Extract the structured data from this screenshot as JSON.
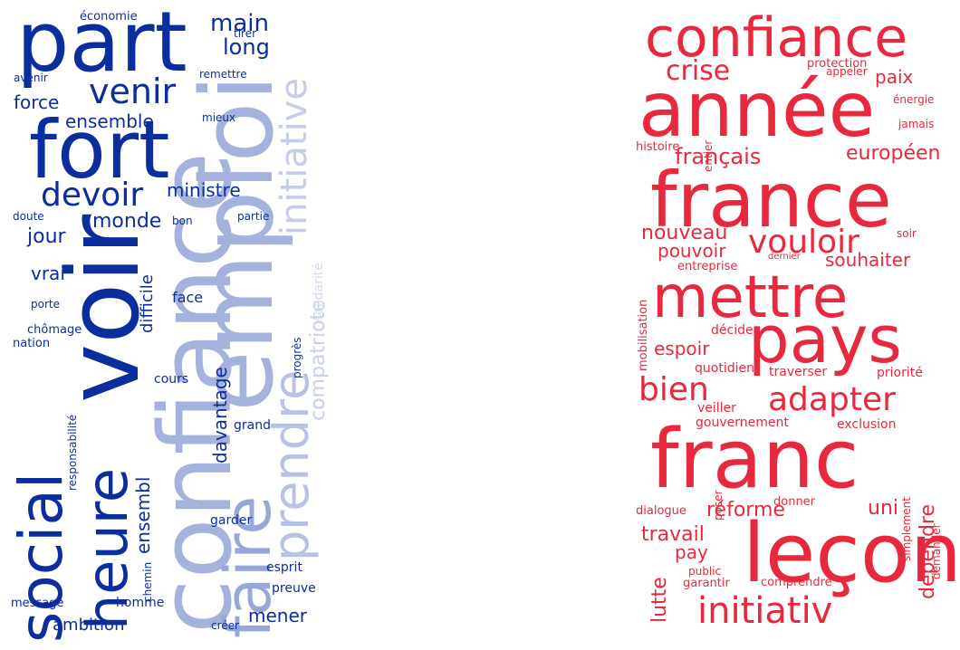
{
  "clouds": [
    {
      "name": "blue",
      "words": [
        {
          "text": "part",
          "color": "#0a2e9e"
        },
        {
          "text": "fort",
          "color": "#0a2e9e"
        },
        {
          "text": "heure",
          "color": "#0a2e9e"
        },
        {
          "text": "voir",
          "color": "#0a2e9e"
        },
        {
          "text": "social",
          "color": "#0a2e9e"
        },
        {
          "text": "confiance",
          "color": "#a6b2de"
        },
        {
          "text": "emploi",
          "color": "#a6b2de"
        },
        {
          "text": "faire",
          "color": "#98a6d9"
        },
        {
          "text": "initiative",
          "color": "#c5cde9"
        },
        {
          "text": "prendre",
          "color": "#b8c2e5"
        },
        {
          "text": "compatriote",
          "color": "#c9d0eb"
        },
        {
          "text": "solidarité",
          "color": "#d4daf0"
        },
        {
          "text": "venir",
          "color": "#0a2e9e"
        },
        {
          "text": "devoir",
          "color": "#0a2e9e"
        },
        {
          "text": "main",
          "color": "#0a2e9e"
        },
        {
          "text": "long",
          "color": "#0a2e9e"
        },
        {
          "text": "économie",
          "color": "#0a2e9e"
        },
        {
          "text": "tirer",
          "color": "#0a2e9e"
        },
        {
          "text": "remettre",
          "color": "#0a2e9e"
        },
        {
          "text": "avenir",
          "color": "#0a2e9e"
        },
        {
          "text": "force",
          "color": "#0a2e9e"
        },
        {
          "text": "ensemble",
          "color": "#0a2e9e"
        },
        {
          "text": "mieux",
          "color": "#0a2e9e"
        },
        {
          "text": "ministre",
          "color": "#0a2e9e"
        },
        {
          "text": "monde",
          "color": "#0a2e9e"
        },
        {
          "text": "doute",
          "color": "#0a2e9e"
        },
        {
          "text": "bon",
          "color": "#0a2e9e"
        },
        {
          "text": "partie",
          "color": "#0a2e9e"
        },
        {
          "text": "jour",
          "color": "#0a2e9e"
        },
        {
          "text": "vrai",
          "color": "#0a2e9e"
        },
        {
          "text": "difficile",
          "color": "#0a2e9e"
        },
        {
          "text": "face",
          "color": "#0a2e9e"
        },
        {
          "text": "porte",
          "color": "#0a2e9e"
        },
        {
          "text": "chômage",
          "color": "#0a2e9e"
        },
        {
          "text": "nation",
          "color": "#0a2e9e"
        },
        {
          "text": "progrès",
          "color": "#0a2e9e"
        },
        {
          "text": "cours",
          "color": "#0a2e9e"
        },
        {
          "text": "responsabilité",
          "color": "#0a2e9e"
        },
        {
          "text": "davantage",
          "color": "#0a2e9e"
        },
        {
          "text": "grand",
          "color": "#0a2e9e"
        },
        {
          "text": "ensembl",
          "color": "#0a2e9e"
        },
        {
          "text": "garder",
          "color": "#0a2e9e"
        },
        {
          "text": "chemin",
          "color": "#0a2e9e"
        },
        {
          "text": "esprit",
          "color": "#0a2e9e"
        },
        {
          "text": "preuve",
          "color": "#0a2e9e"
        },
        {
          "text": "message",
          "color": "#0a2e9e"
        },
        {
          "text": "homme",
          "color": "#0a2e9e"
        },
        {
          "text": "mener",
          "color": "#0a2e9e"
        },
        {
          "text": "ambition",
          "color": "#0a2e9e"
        },
        {
          "text": "créer",
          "color": "#0a2e9e"
        }
      ]
    },
    {
      "name": "red",
      "words": [
        {
          "text": "confiance",
          "color": "#e8283c"
        },
        {
          "text": "année",
          "color": "#e8283c"
        },
        {
          "text": "crise",
          "color": "#e8283c"
        },
        {
          "text": "protection",
          "color": "#e8283c"
        },
        {
          "text": "appeler",
          "color": "#e8283c"
        },
        {
          "text": "paix",
          "color": "#e8283c"
        },
        {
          "text": "énergie",
          "color": "#e8283c"
        },
        {
          "text": "jamais",
          "color": "#e8283c"
        },
        {
          "text": "histoire",
          "color": "#e8283c"
        },
        {
          "text": "entier",
          "color": "#e8283c"
        },
        {
          "text": "français",
          "color": "#e8283c"
        },
        {
          "text": "européen",
          "color": "#e8283c"
        },
        {
          "text": "france",
          "color": "#e8283c"
        },
        {
          "text": "nouveau",
          "color": "#e8283c"
        },
        {
          "text": "vouloir",
          "color": "#e8283c"
        },
        {
          "text": "soir",
          "color": "#e8283c"
        },
        {
          "text": "pouvoir",
          "color": "#e8283c"
        },
        {
          "text": "entreprise",
          "color": "#e8283c"
        },
        {
          "text": "dernier",
          "color": "#e8283c"
        },
        {
          "text": "souhaiter",
          "color": "#e8283c"
        },
        {
          "text": "mettre",
          "color": "#e8283c"
        },
        {
          "text": "pays",
          "color": "#e8283c"
        },
        {
          "text": "mobilisation",
          "color": "#e8283c"
        },
        {
          "text": "décider",
          "color": "#e8283c"
        },
        {
          "text": "espoir",
          "color": "#e8283c"
        },
        {
          "text": "quotidien",
          "color": "#e8283c"
        },
        {
          "text": "traverser",
          "color": "#e8283c"
        },
        {
          "text": "priorité",
          "color": "#e8283c"
        },
        {
          "text": "bien",
          "color": "#e8283c"
        },
        {
          "text": "adapter",
          "color": "#e8283c"
        },
        {
          "text": "veiller",
          "color": "#e8283c"
        },
        {
          "text": "gouvernement",
          "color": "#e8283c"
        },
        {
          "text": "exclusion",
          "color": "#e8283c"
        },
        {
          "text": "franc",
          "color": "#e8283c"
        },
        {
          "text": "poser",
          "color": "#e8283c"
        },
        {
          "text": "dialogue",
          "color": "#e8283c"
        },
        {
          "text": "donner",
          "color": "#e8283c"
        },
        {
          "text": "réforme",
          "color": "#e8283c"
        },
        {
          "text": "uni",
          "color": "#e8283c"
        },
        {
          "text": "simplement",
          "color": "#e8283c"
        },
        {
          "text": "demander",
          "color": "#e8283c"
        },
        {
          "text": "travail",
          "color": "#e8283c"
        },
        {
          "text": "pay",
          "color": "#e8283c"
        },
        {
          "text": "leçon",
          "color": "#e8283c"
        },
        {
          "text": "dépendre",
          "color": "#e8283c"
        },
        {
          "text": "lutte",
          "color": "#e8283c"
        },
        {
          "text": "public",
          "color": "#e8283c"
        },
        {
          "text": "garantir",
          "color": "#e8283c"
        },
        {
          "text": "comprendre",
          "color": "#e8283c"
        },
        {
          "text": "initiativ",
          "color": "#e8283c"
        }
      ]
    }
  ]
}
